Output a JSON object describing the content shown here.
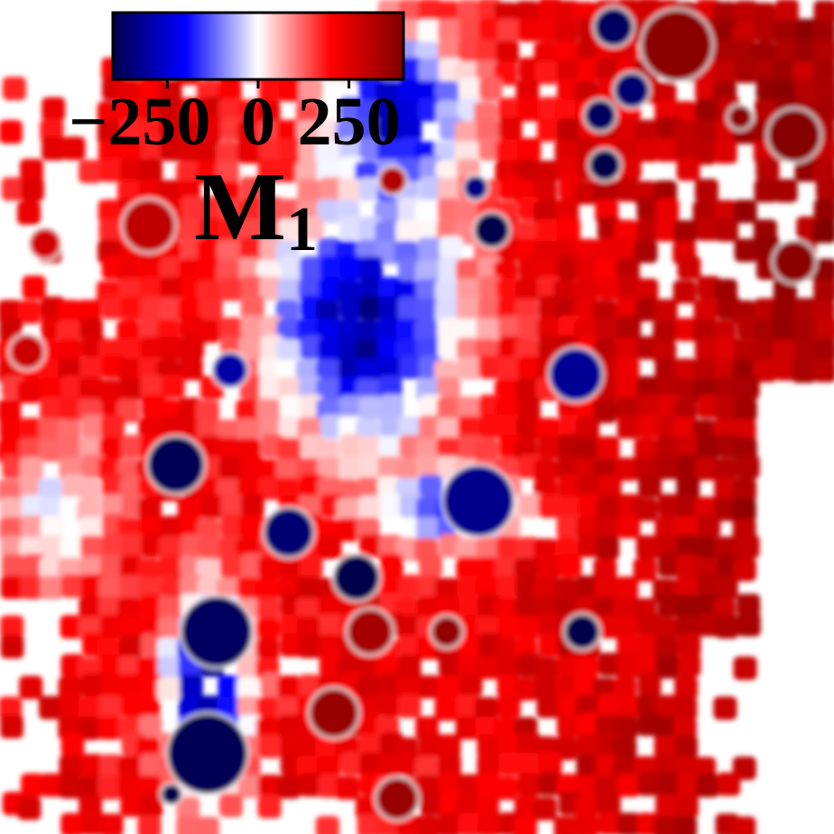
{
  "chart_data": {
    "type": "heatmap",
    "title": "M",
    "title_subscript": "1",
    "colormap": "seismic",
    "colorbar": {
      "vmin": -400,
      "vmax": 400,
      "ticks": [
        -250,
        0,
        250
      ],
      "tick_labels": [
        "−250",
        "0",
        "250"
      ],
      "placement": "top-left"
    },
    "background": "#ffffff",
    "colors": {
      "negative": "#0000d0",
      "neutral": "#ffffff",
      "positive": "#c00000"
    }
  }
}
